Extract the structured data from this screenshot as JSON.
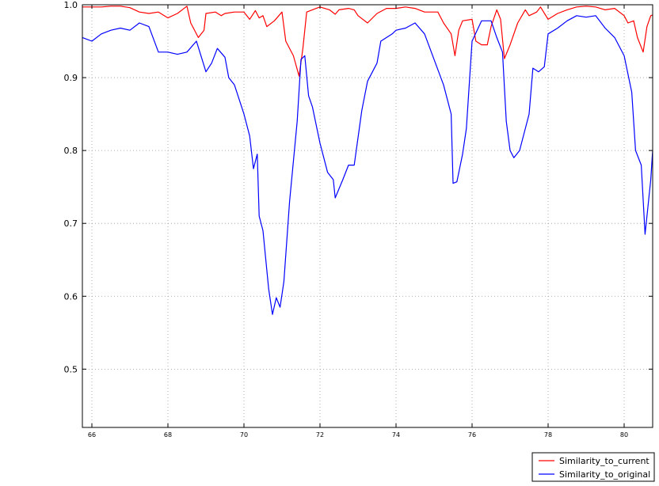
{
  "chart_data": {
    "type": "line",
    "title": "",
    "xlabel": "",
    "ylabel": "",
    "xlim": [
      65.75,
      80.75
    ],
    "ylim": [
      0.42,
      1.0
    ],
    "grid": true,
    "legend_position": "bottom-right",
    "xticks": [
      66,
      68,
      70,
      72,
      74,
      76,
      78,
      80
    ],
    "xtick_labels": [
      "66",
      "68",
      "70",
      "72",
      "74",
      "76",
      "78",
      "80"
    ],
    "yticks": [
      0.5,
      0.6,
      0.7,
      0.8,
      0.9,
      1.0
    ],
    "ytick_labels": [
      "0.5",
      "0.6",
      "0.7",
      "0.8",
      "0.9",
      "1.0"
    ],
    "series": [
      {
        "name": "Similarity_to_current",
        "color": "#ff0000",
        "points": [
          [
            65.75,
            0.997
          ],
          [
            66.0,
            0.997
          ],
          [
            66.25,
            0.997
          ],
          [
            66.5,
            0.998
          ],
          [
            66.75,
            0.998
          ],
          [
            67.0,
            0.996
          ],
          [
            67.25,
            0.99
          ],
          [
            67.5,
            0.988
          ],
          [
            67.75,
            0.99
          ],
          [
            68.0,
            0.982
          ],
          [
            68.25,
            0.988
          ],
          [
            68.5,
            0.998
          ],
          [
            68.6,
            0.975
          ],
          [
            68.8,
            0.955
          ],
          [
            68.95,
            0.965
          ],
          [
            69.0,
            0.988
          ],
          [
            69.25,
            0.99
          ],
          [
            69.4,
            0.985
          ],
          [
            69.5,
            0.988
          ],
          [
            69.75,
            0.99
          ],
          [
            70.0,
            0.99
          ],
          [
            70.15,
            0.98
          ],
          [
            70.3,
            0.992
          ],
          [
            70.4,
            0.982
          ],
          [
            70.5,
            0.985
          ],
          [
            70.6,
            0.97
          ],
          [
            70.8,
            0.978
          ],
          [
            71.0,
            0.99
          ],
          [
            71.1,
            0.95
          ],
          [
            71.3,
            0.93
          ],
          [
            71.45,
            0.902
          ],
          [
            71.55,
            0.94
          ],
          [
            71.65,
            0.99
          ],
          [
            71.9,
            0.995
          ],
          [
            72.0,
            0.997
          ],
          [
            72.25,
            0.993
          ],
          [
            72.4,
            0.987
          ],
          [
            72.5,
            0.993
          ],
          [
            72.75,
            0.995
          ],
          [
            72.9,
            0.993
          ],
          [
            73.0,
            0.985
          ],
          [
            73.25,
            0.975
          ],
          [
            73.5,
            0.988
          ],
          [
            73.75,
            0.995
          ],
          [
            74.0,
            0.995
          ],
          [
            74.25,
            0.997
          ],
          [
            74.5,
            0.995
          ],
          [
            74.75,
            0.99
          ],
          [
            75.0,
            0.99
          ],
          [
            75.1,
            0.99
          ],
          [
            75.25,
            0.975
          ],
          [
            75.45,
            0.96
          ],
          [
            75.55,
            0.93
          ],
          [
            75.65,
            0.965
          ],
          [
            75.75,
            0.978
          ],
          [
            76.0,
            0.98
          ],
          [
            76.1,
            0.95
          ],
          [
            76.25,
            0.945
          ],
          [
            76.4,
            0.945
          ],
          [
            76.5,
            0.97
          ],
          [
            76.65,
            0.993
          ],
          [
            76.75,
            0.98
          ],
          [
            76.85,
            0.926
          ],
          [
            77.0,
            0.945
          ],
          [
            77.2,
            0.975
          ],
          [
            77.4,
            0.993
          ],
          [
            77.5,
            0.985
          ],
          [
            77.7,
            0.99
          ],
          [
            77.8,
            0.997
          ],
          [
            78.0,
            0.98
          ],
          [
            78.25,
            0.988
          ],
          [
            78.5,
            0.993
          ],
          [
            78.75,
            0.997
          ],
          [
            79.0,
            0.998
          ],
          [
            79.25,
            0.997
          ],
          [
            79.5,
            0.993
          ],
          [
            79.75,
            0.995
          ],
          [
            80.0,
            0.985
          ],
          [
            80.1,
            0.975
          ],
          [
            80.25,
            0.978
          ],
          [
            80.35,
            0.955
          ],
          [
            80.5,
            0.935
          ],
          [
            80.6,
            0.97
          ],
          [
            80.7,
            0.985
          ],
          [
            80.75,
            0.986
          ]
        ]
      },
      {
        "name": "Similarity_to_original",
        "color": "#0000ff",
        "points": [
          [
            65.75,
            0.955
          ],
          [
            66.0,
            0.95
          ],
          [
            66.25,
            0.96
          ],
          [
            66.5,
            0.965
          ],
          [
            66.75,
            0.968
          ],
          [
            67.0,
            0.965
          ],
          [
            67.25,
            0.975
          ],
          [
            67.5,
            0.97
          ],
          [
            67.75,
            0.935
          ],
          [
            68.0,
            0.935
          ],
          [
            68.25,
            0.932
          ],
          [
            68.5,
            0.935
          ],
          [
            68.75,
            0.95
          ],
          [
            69.0,
            0.908
          ],
          [
            69.15,
            0.92
          ],
          [
            69.3,
            0.94
          ],
          [
            69.5,
            0.928
          ],
          [
            69.6,
            0.9
          ],
          [
            69.75,
            0.89
          ],
          [
            70.0,
            0.85
          ],
          [
            70.15,
            0.82
          ],
          [
            70.25,
            0.775
          ],
          [
            70.35,
            0.795
          ],
          [
            70.4,
            0.71
          ],
          [
            70.5,
            0.69
          ],
          [
            70.65,
            0.61
          ],
          [
            70.75,
            0.575
          ],
          [
            70.85,
            0.598
          ],
          [
            70.95,
            0.585
          ],
          [
            71.05,
            0.62
          ],
          [
            71.2,
            0.73
          ],
          [
            71.4,
            0.84
          ],
          [
            71.5,
            0.925
          ],
          [
            71.6,
            0.93
          ],
          [
            71.7,
            0.875
          ],
          [
            71.8,
            0.86
          ],
          [
            72.0,
            0.81
          ],
          [
            72.2,
            0.77
          ],
          [
            72.35,
            0.76
          ],
          [
            72.4,
            0.735
          ],
          [
            72.6,
            0.76
          ],
          [
            72.75,
            0.78
          ],
          [
            72.9,
            0.78
          ],
          [
            73.1,
            0.855
          ],
          [
            73.25,
            0.895
          ],
          [
            73.5,
            0.92
          ],
          [
            73.6,
            0.95
          ],
          [
            73.75,
            0.955
          ],
          [
            73.9,
            0.96
          ],
          [
            74.0,
            0.965
          ],
          [
            74.25,
            0.968
          ],
          [
            74.5,
            0.975
          ],
          [
            74.75,
            0.96
          ],
          [
            75.0,
            0.925
          ],
          [
            75.25,
            0.89
          ],
          [
            75.45,
            0.85
          ],
          [
            75.5,
            0.755
          ],
          [
            75.6,
            0.757
          ],
          [
            75.75,
            0.795
          ],
          [
            75.85,
            0.83
          ],
          [
            76.0,
            0.95
          ],
          [
            76.25,
            0.978
          ],
          [
            76.5,
            0.978
          ],
          [
            76.65,
            0.955
          ],
          [
            76.8,
            0.935
          ],
          [
            76.9,
            0.84
          ],
          [
            77.0,
            0.8
          ],
          [
            77.1,
            0.79
          ],
          [
            77.25,
            0.8
          ],
          [
            77.5,
            0.85
          ],
          [
            77.6,
            0.913
          ],
          [
            77.75,
            0.908
          ],
          [
            77.9,
            0.915
          ],
          [
            78.0,
            0.96
          ],
          [
            78.25,
            0.968
          ],
          [
            78.5,
            0.978
          ],
          [
            78.75,
            0.985
          ],
          [
            79.0,
            0.983
          ],
          [
            79.25,
            0.985
          ],
          [
            79.5,
            0.968
          ],
          [
            79.75,
            0.955
          ],
          [
            80.0,
            0.93
          ],
          [
            80.2,
            0.88
          ],
          [
            80.3,
            0.8
          ],
          [
            80.45,
            0.78
          ],
          [
            80.55,
            0.685
          ],
          [
            80.7,
            0.76
          ],
          [
            80.75,
            0.8
          ]
        ]
      }
    ]
  }
}
